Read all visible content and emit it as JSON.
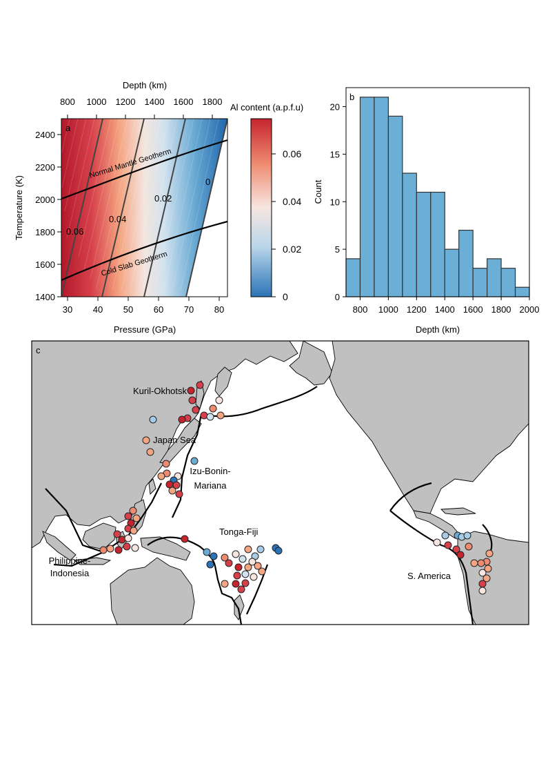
{
  "panel_a": {
    "label": "a",
    "top_axis_title": "Depth (km)",
    "top_ticks": [
      "800",
      "1000",
      "1200",
      "1400",
      "1600",
      "1800"
    ],
    "x_title": "Pressure (GPa)",
    "x_ticks": [
      "30",
      "40",
      "50",
      "60",
      "70",
      "80"
    ],
    "y_title": "Temperature (K)",
    "y_ticks": [
      "2400",
      "2200",
      "2000",
      "1800",
      "1600",
      "1400"
    ],
    "geotherm_normal": "Normal Mantle Geotherm",
    "geotherm_cold": "Cold Slab Geotherm",
    "contours": [
      "0.06",
      "0.04",
      "0.02",
      "0"
    ]
  },
  "colorbar": {
    "title": "Al content (a.p.f.u)",
    "ticks": [
      "0.06",
      "0.04",
      "0.02",
      "0"
    ]
  },
  "panel_b": {
    "label": "b"
  },
  "panel_c": {
    "label": "c",
    "regions": [
      "Kuril-Okhotsk",
      "Japan Sea",
      "Izu-Bonin-",
      "Mariana",
      "Tonga-Fiji",
      "Philippine-",
      "Indonesia",
      "S. America"
    ]
  },
  "chart_data": [
    {
      "type": "heatmap",
      "title": "",
      "xlabel": "Pressure (GPa)",
      "ylabel": "Temperature (K)",
      "secondary_xlabel": "Depth (km)",
      "colorbar_label": "Al content (a.p.f.u)",
      "xlim": [
        27,
        82
      ],
      "ylim": [
        1400,
        2500
      ],
      "color_range": [
        0,
        0.075
      ],
      "contour_levels": [
        0.06,
        0.04,
        0.02,
        0
      ],
      "curves": [
        {
          "name": "Normal Mantle Geotherm",
          "x": [
            27,
            82
          ],
          "y": [
            2000,
            2370
          ]
        },
        {
          "name": "Cold Slab Geotherm",
          "x": [
            27,
            82
          ],
          "y": [
            1490,
            1860
          ]
        }
      ]
    },
    {
      "type": "bar",
      "title": "",
      "xlabel": "Depth (km)",
      "ylabel": "Count",
      "bin_edges": [
        700,
        800,
        900,
        1000,
        1100,
        1200,
        1300,
        1400,
        1500,
        1600,
        1700,
        1800,
        1900,
        2000
      ],
      "values": [
        4,
        21,
        21,
        19,
        13,
        11,
        11,
        5,
        7,
        3,
        4,
        3,
        1
      ],
      "xlim": [
        700,
        2000
      ],
      "ylim": [
        0,
        22
      ],
      "x_ticks": [
        "800",
        "1000",
        "1200",
        "1400",
        "1600",
        "1800",
        "2000"
      ],
      "y_ticks": [
        "0",
        "5",
        "10",
        "15",
        "20"
      ]
    }
  ],
  "colors": {
    "bar_fill": "#6baed6",
    "land": "#c0c0c0",
    "high_al": "#d92b2b",
    "low_al": "#3a7fc0"
  }
}
